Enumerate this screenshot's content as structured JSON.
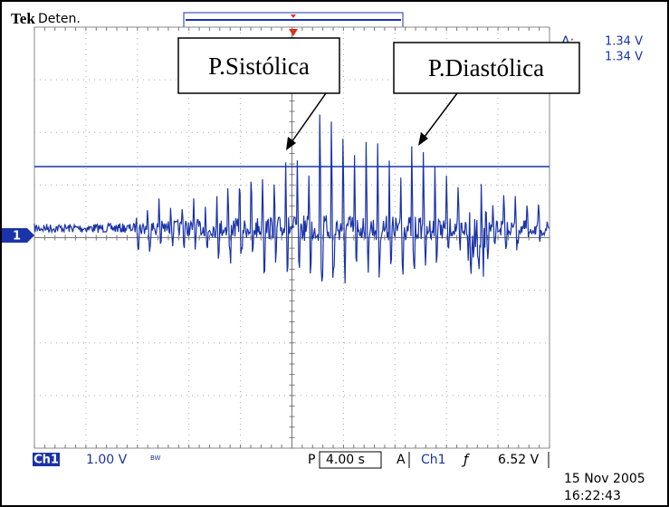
{
  "header": {
    "brand": "Tek",
    "status": "Deten."
  },
  "cursors": {
    "symbol": "Δ:",
    "readouts": [
      "1.34 V",
      "1.34 V"
    ]
  },
  "annotations": [
    {
      "label": "P.Sistólica"
    },
    {
      "label": "P.Diastólica"
    }
  ],
  "channel_marker": "1",
  "footer": {
    "channel": "Ch1",
    "scale": "1.00 V",
    "bandwidth": "BW",
    "time_prefix": "P",
    "time_scale": "4.00 s",
    "trigger_mode": "A",
    "trigger_source": "Ch1",
    "trigger_slope": "ƒ",
    "trigger_level": "6.52 V",
    "date": "15 Nov 2005",
    "time": "16:22:43"
  }
}
